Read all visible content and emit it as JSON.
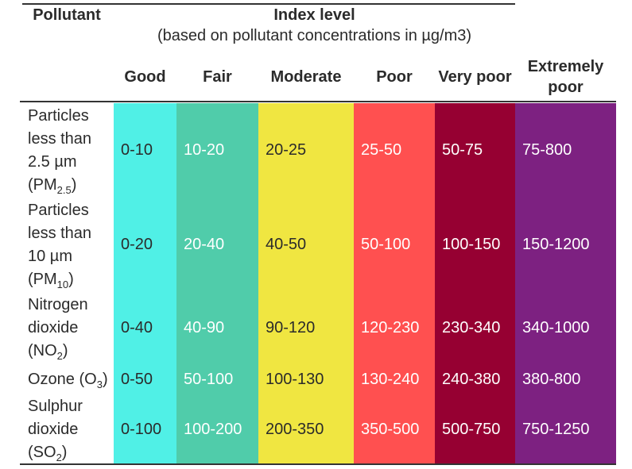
{
  "header": {
    "pollutant_label": "Pollutant",
    "index_level_title": "Index level",
    "index_level_subtitle": "(based on pollutant concentrations in µg/m3)"
  },
  "columns": [
    {
      "label": "Good",
      "color": "#50f0e6",
      "text_color": "#2b2b2b"
    },
    {
      "label": "Fair",
      "color": "#50ccaa",
      "text_color": "#ffffff"
    },
    {
      "label": "Moderate",
      "color": "#f0e641",
      "text_color": "#2b2b2b"
    },
    {
      "label": "Poor",
      "color": "#ff5050",
      "text_color": "#ffffff"
    },
    {
      "label": "Very poor",
      "color": "#960032",
      "text_color": "#ffffff"
    },
    {
      "label": "Extremely poor",
      "color": "#7d2181",
      "text_color": "#ffffff"
    }
  ],
  "rows": [
    {
      "pollutant": [
        {
          "t": "Particles less than 2.5 µm (PM"
        },
        {
          "t": "2.5",
          "sub": true
        },
        {
          "t": ")"
        }
      ],
      "values": [
        "0-10",
        "10-20",
        "20-25",
        "25-50",
        "50-75",
        "75-800"
      ]
    },
    {
      "pollutant": [
        {
          "t": "Particles less than 10 µm (PM"
        },
        {
          "t": "10",
          "sub": true
        },
        {
          "t": ")"
        }
      ],
      "values": [
        "0-20",
        "20-40",
        "40-50",
        "50-100",
        "100-150",
        "150-1200"
      ]
    },
    {
      "pollutant": [
        {
          "t": "Nitrogen dioxide (NO"
        },
        {
          "t": "2",
          "sub": true
        },
        {
          "t": ")"
        }
      ],
      "values": [
        "0-40",
        "40-90",
        "90-120",
        "120-230",
        "230-340",
        "340-1000"
      ]
    },
    {
      "pollutant": [
        {
          "t": "Ozone (O"
        },
        {
          "t": "3",
          "sub": true
        },
        {
          "t": ")"
        }
      ],
      "values": [
        "0-50",
        "50-100",
        "100-130",
        "130-240",
        "240-380",
        "380-800"
      ]
    },
    {
      "pollutant": [
        {
          "t": "Sulphur dioxide (SO"
        },
        {
          "t": "2",
          "sub": true
        },
        {
          "t": ")"
        }
      ],
      "values": [
        "0-100",
        "100-200",
        "200-350",
        "350-500",
        "500-750",
        "750-1250"
      ]
    }
  ],
  "colors": {
    "border": "#333333",
    "dark_text": "#2b2b2b",
    "light_text": "#ffffff"
  },
  "chart_data": {
    "type": "table",
    "title": "Index level (based on pollutant concentrations in µg/m3)",
    "columns": [
      "Pollutant",
      "Good",
      "Fair",
      "Moderate",
      "Poor",
      "Very poor",
      "Extremely poor"
    ],
    "rows": [
      [
        "Particles less than 2.5 µm (PM2.5)",
        "0-10",
        "10-20",
        "20-25",
        "25-50",
        "50-75",
        "75-800"
      ],
      [
        "Particles less than 10 µm (PM10)",
        "0-20",
        "20-40",
        "40-50",
        "50-100",
        "100-150",
        "150-1200"
      ],
      [
        "Nitrogen dioxide (NO2)",
        "0-40",
        "40-90",
        "90-120",
        "120-230",
        "230-340",
        "340-1000"
      ],
      [
        "Ozone (O3)",
        "0-50",
        "50-100",
        "100-130",
        "130-240",
        "240-380",
        "380-800"
      ],
      [
        "Sulphur dioxide (SO2)",
        "0-100",
        "100-200",
        "200-350",
        "350-500",
        "500-750",
        "750-1250"
      ]
    ],
    "column_colors": [
      "#50f0e6",
      "#50ccaa",
      "#f0e641",
      "#ff5050",
      "#960032",
      "#7d2181"
    ]
  }
}
